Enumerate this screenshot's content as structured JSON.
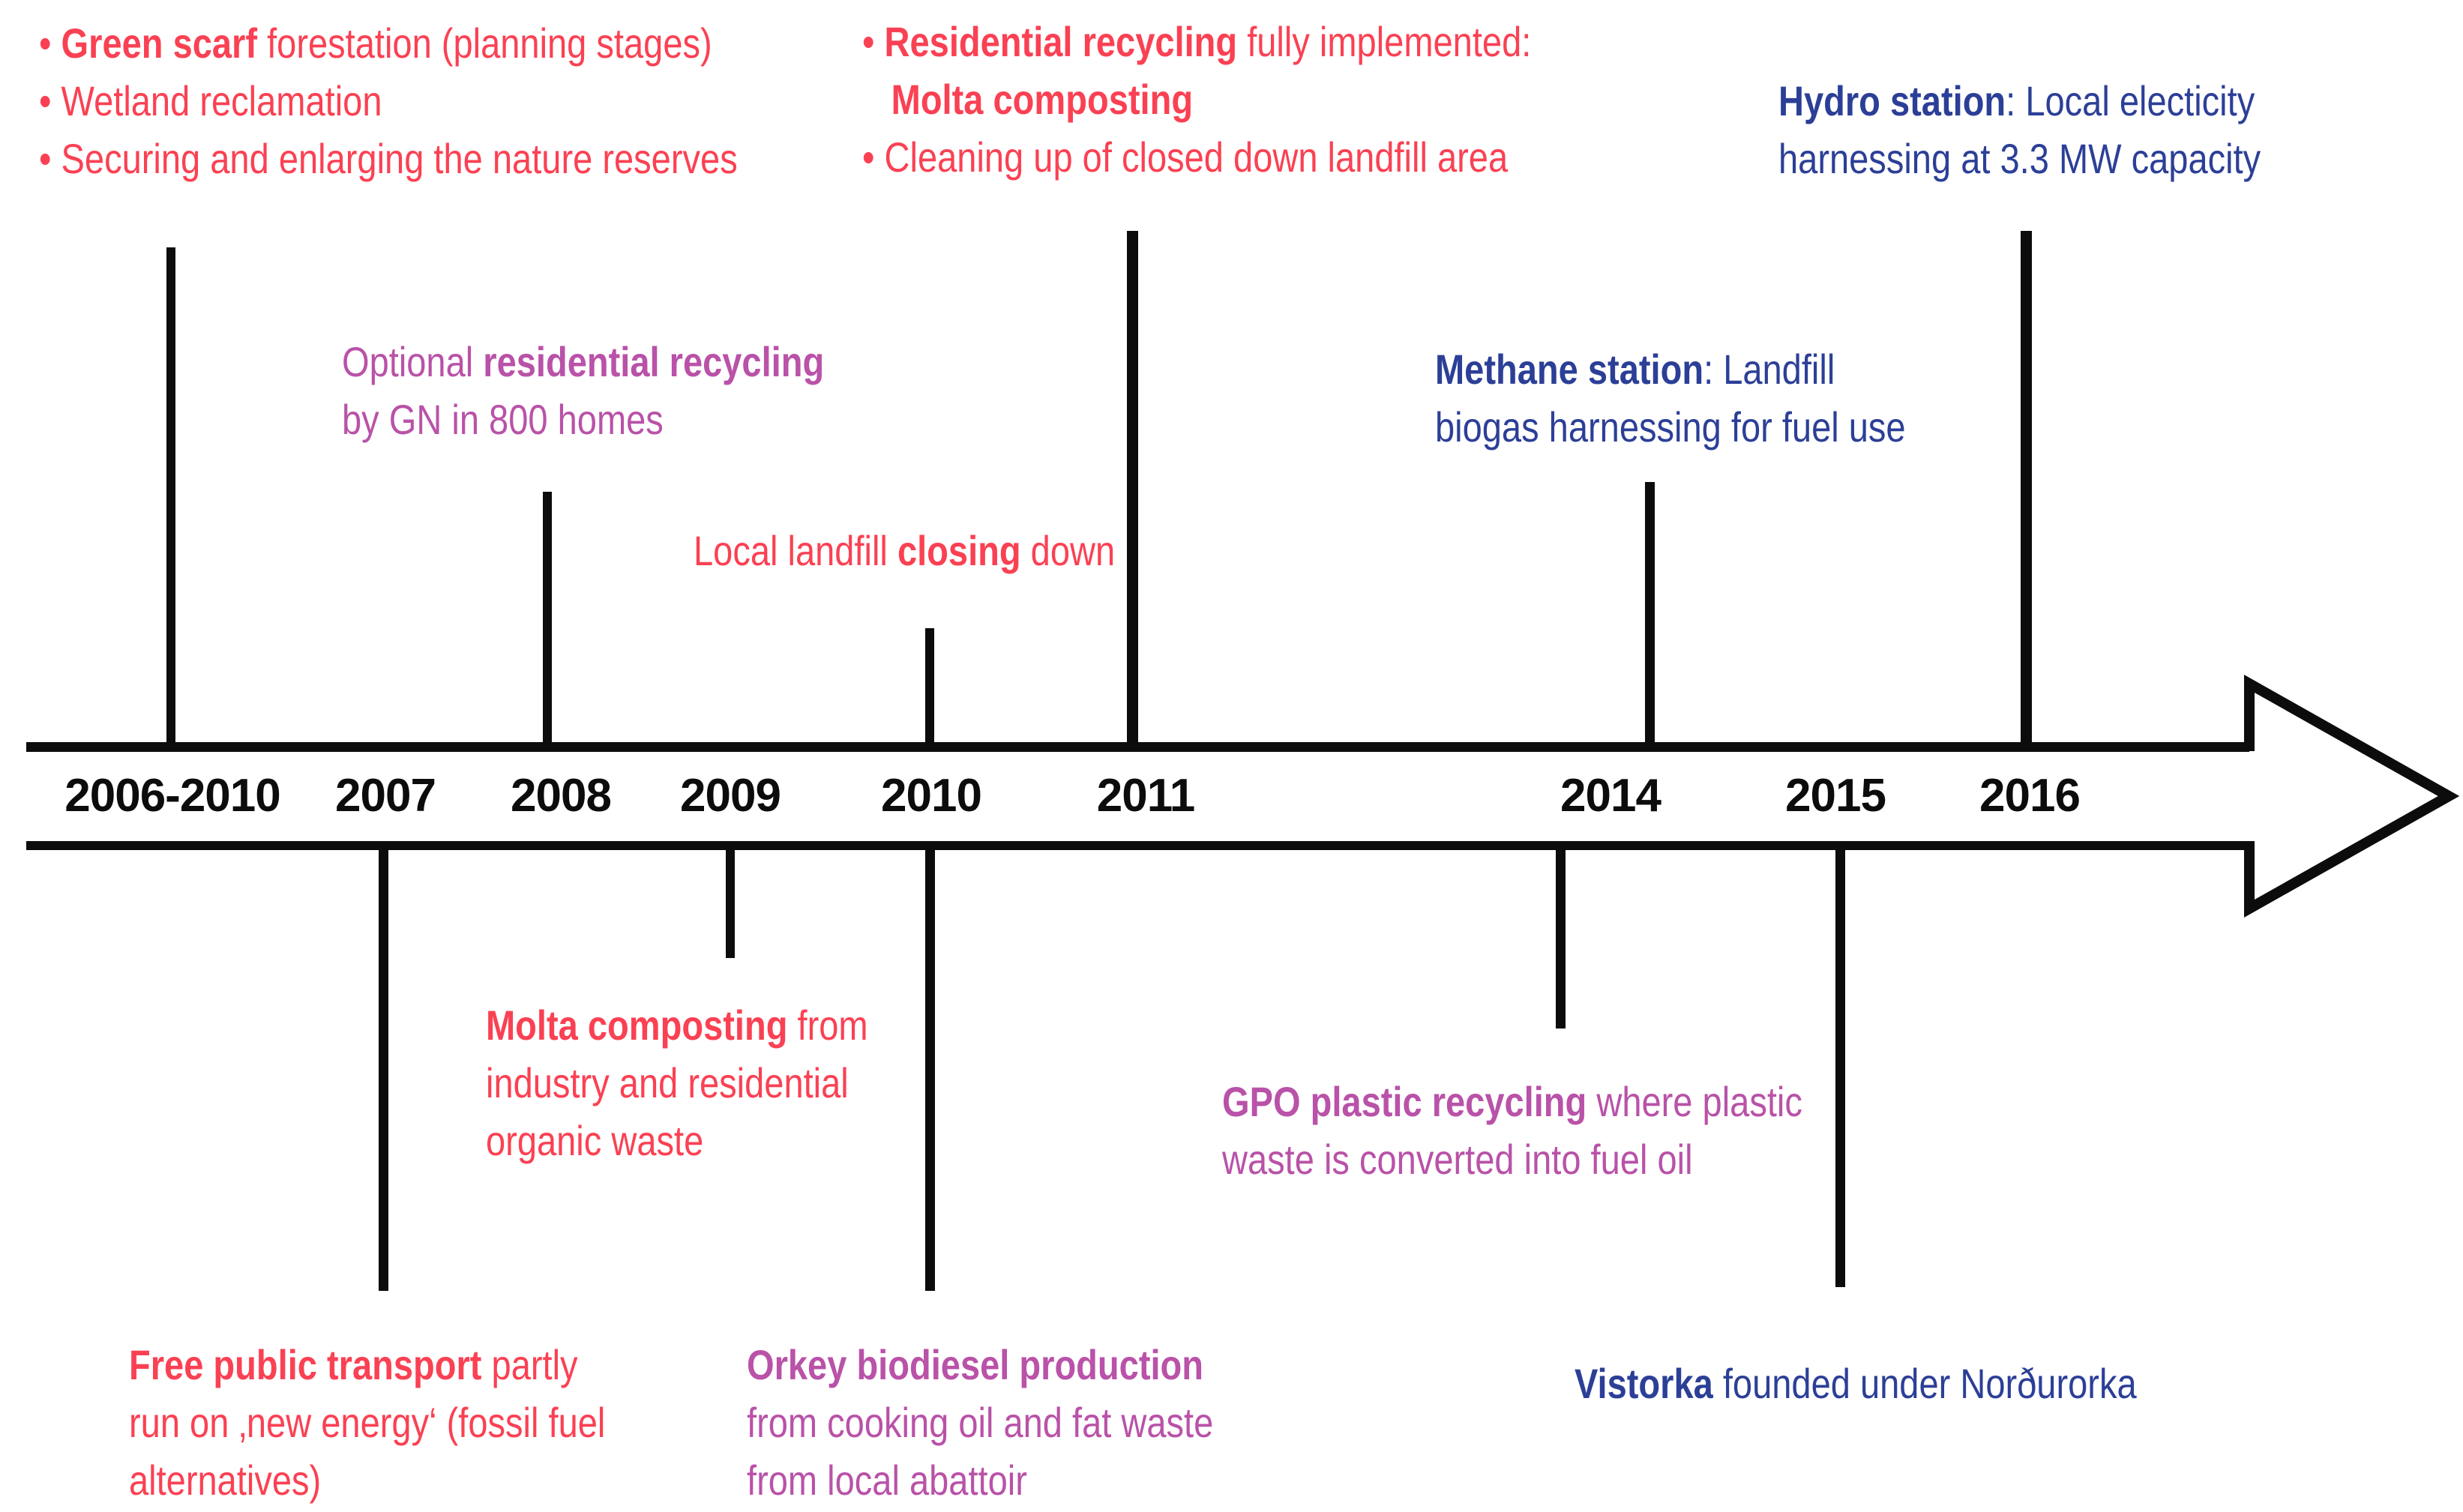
{
  "figure": {
    "type": "timeline",
    "subject": "Local sustainability and energy milestones 2006-2016",
    "direction": "left-to-right"
  },
  "colors": {
    "red": "#fa4153",
    "purple": "#b952a8",
    "blue": "#2c3f97",
    "axis": "#0c0c0c",
    "background": "#ffffff"
  },
  "timeline": {
    "years": [
      "2006-2010",
      "2007",
      "2008",
      "2009",
      "2010",
      "2011",
      "2014",
      "2015",
      "2016"
    ],
    "arrowhead": "right"
  },
  "annotations": [
    {
      "id": "green-scarf-list",
      "color": "red",
      "position": "above",
      "year": "2006-2010",
      "lines": [
        {
          "bullet": true,
          "segs": [
            {
              "t": "Green scarf",
              "b": true
            },
            {
              "t": " forestation (planning stages)"
            }
          ]
        },
        {
          "bullet": true,
          "segs": [
            {
              "t": "Wetland reclamation"
            }
          ]
        },
        {
          "bullet": true,
          "segs": [
            {
              "t": "Securing and enlarging the nature reserves"
            }
          ]
        }
      ]
    },
    {
      "id": "residential-recycling-full",
      "color": "red",
      "position": "above",
      "year": "2011",
      "lines": [
        {
          "bullet": true,
          "segs": [
            {
              "t": "Residential recycling",
              "b": true
            },
            {
              "t": " fully implemented:"
            }
          ]
        },
        {
          "indent": true,
          "segs": [
            {
              "t": "Molta composting",
              "b": true
            }
          ]
        },
        {
          "bullet": true,
          "segs": [
            {
              "t": "Cleaning up of closed down landfill area"
            }
          ]
        }
      ]
    },
    {
      "id": "hydro-station",
      "color": "blue",
      "position": "above",
      "year": "2016",
      "lines": [
        {
          "segs": [
            {
              "t": "Hydro station",
              "b": true
            },
            {
              "t": ": Local electicity"
            }
          ]
        },
        {
          "segs": [
            {
              "t": "harnessing at 3.3 MW capacity"
            }
          ]
        }
      ]
    },
    {
      "id": "optional-recycling",
      "color": "purple",
      "position": "above",
      "year": "2008",
      "lines": [
        {
          "segs": [
            {
              "t": "Optional "
            },
            {
              "t": "residential recycling",
              "b": true
            }
          ]
        },
        {
          "segs": [
            {
              "t": "by GN in 800 homes"
            }
          ]
        }
      ]
    },
    {
      "id": "methane-station",
      "color": "blue",
      "position": "above",
      "year": "2014",
      "lines": [
        {
          "segs": [
            {
              "t": "Methane station",
              "b": true
            },
            {
              "t": ": Landfill"
            }
          ]
        },
        {
          "segs": [
            {
              "t": "biogas harnessing for fuel use"
            }
          ]
        }
      ]
    },
    {
      "id": "landfill-closing",
      "color": "red",
      "position": "above",
      "year": "2010",
      "lines": [
        {
          "segs": [
            {
              "t": "Local landfill "
            },
            {
              "t": "closing",
              "b": true
            },
            {
              "t": " down"
            }
          ]
        }
      ]
    },
    {
      "id": "molta-composting",
      "color": "red",
      "position": "below",
      "year": "2009",
      "lines": [
        {
          "segs": [
            {
              "t": "Molta composting",
              "b": true
            },
            {
              "t": " from"
            }
          ]
        },
        {
          "segs": [
            {
              "t": "industry and residential"
            }
          ]
        },
        {
          "segs": [
            {
              "t": "organic waste"
            }
          ]
        }
      ]
    },
    {
      "id": "free-public-transport",
      "color": "red",
      "position": "below",
      "year": "2007",
      "lines": [
        {
          "segs": [
            {
              "t": "Free public transport",
              "b": true
            },
            {
              "t": " partly"
            }
          ]
        },
        {
          "segs": [
            {
              "t": "run on ‚new energy‘ (fossil fuel"
            }
          ]
        },
        {
          "segs": [
            {
              "t": "alternatives)"
            }
          ]
        }
      ]
    },
    {
      "id": "orkey-biodiesel",
      "color": "purple",
      "position": "below",
      "year": "2010",
      "lines": [
        {
          "segs": [
            {
              "t": "Orkey biodiesel production",
              "b": true
            }
          ]
        },
        {
          "segs": [
            {
              "t": "from cooking oil and fat waste"
            }
          ]
        },
        {
          "segs": [
            {
              "t": "from local abattoir"
            }
          ]
        }
      ]
    },
    {
      "id": "gpo-plastic",
      "color": "purple",
      "position": "below",
      "year": "2014",
      "lines": [
        {
          "segs": [
            {
              "t": "GPO plastic recycling",
              "b": true
            },
            {
              "t": " where plastic"
            }
          ]
        },
        {
          "segs": [
            {
              "t": "waste is converted into fuel oil"
            }
          ]
        }
      ]
    },
    {
      "id": "vistorka",
      "color": "blue",
      "position": "below",
      "year": "2015",
      "lines": [
        {
          "segs": [
            {
              "t": "Vistorka",
              "b": true
            },
            {
              "t": " founded under Norðurorka"
            }
          ]
        }
      ]
    }
  ]
}
